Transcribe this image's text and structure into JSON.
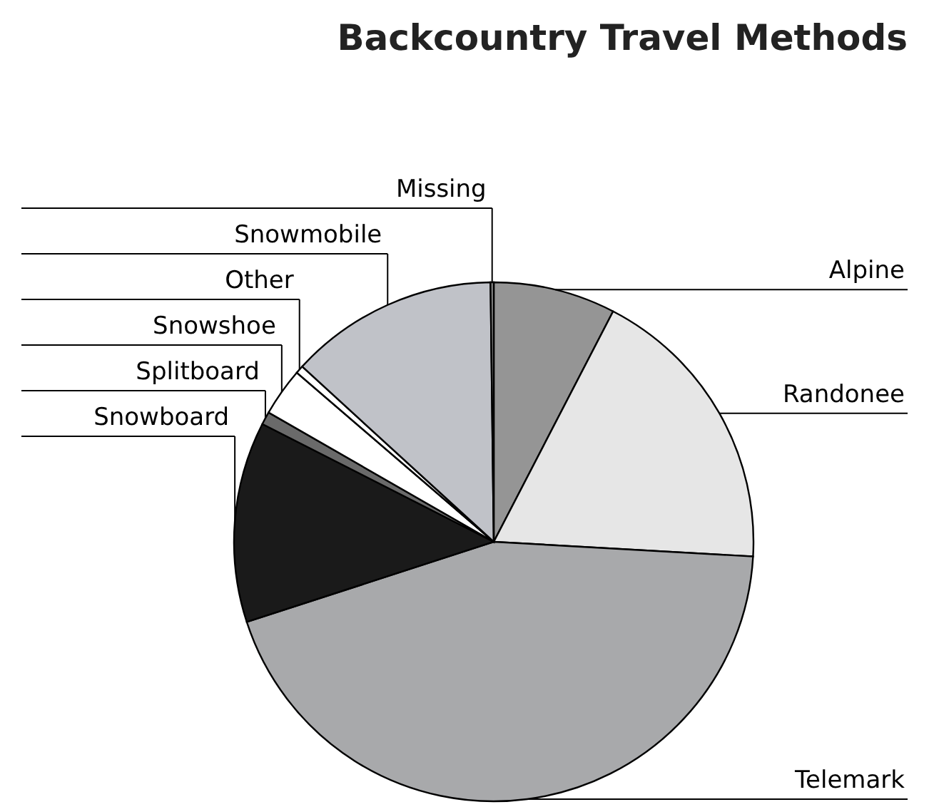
{
  "chart_data": {
    "type": "pie",
    "title": "Backcountry Travel Methods",
    "categories": [
      "Alpine",
      "Randonee",
      "Telemark",
      "Snowboard",
      "Splitboard",
      "Snowshoe",
      "Other",
      "Snowmobile",
      "Missing"
    ],
    "values": [
      7.6,
      18.3,
      44.1,
      12.5,
      0.8,
      3.0,
      0.5,
      13.0,
      0.2
    ],
    "colors": [
      "#959595",
      "#e6e6e6",
      "#a8a9ab",
      "#1a1a1a",
      "#6a6a6a",
      "#ffffff",
      "#ffffff",
      "#c0c2c8",
      "#8a8a8a"
    ],
    "legend": false
  }
}
